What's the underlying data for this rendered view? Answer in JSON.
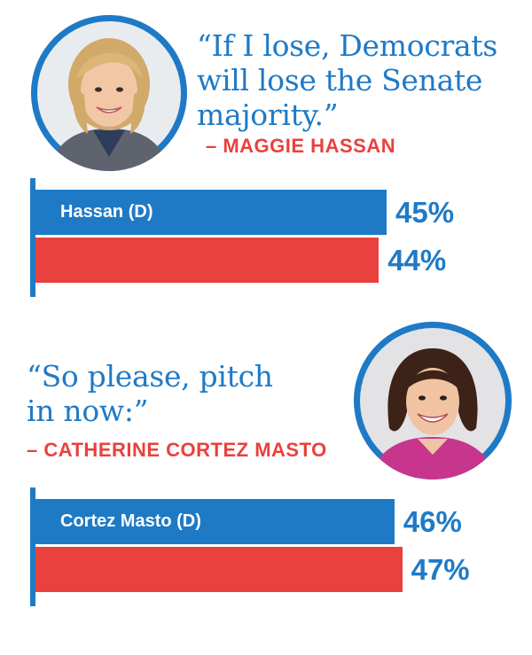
{
  "panels": [
    {
      "quote": "“If I lose, Democrats\n will lose the Senate\n majority.”",
      "attribution": "– MAGGIE HASSAN",
      "photo_icon": "portrait-photo-woman-blond",
      "chart_data": {
        "type": "bar",
        "orientation": "horizontal",
        "categories": [
          "Hassan (D)",
          ""
        ],
        "values": [
          45,
          44
        ],
        "value_labels": [
          "45%",
          "44%"
        ],
        "bar_colors": [
          "#1f7ac6",
          "#e8413e"
        ],
        "xlim": [
          0,
          100
        ],
        "grid": false,
        "legend": "none"
      }
    },
    {
      "quote": "“So please, pitch\n in now:”",
      "attribution": "– CATHERINE CORTEZ MASTO",
      "photo_icon": "portrait-photo-woman-dark-hair",
      "chart_data": {
        "type": "bar",
        "orientation": "horizontal",
        "categories": [
          "Cortez Masto (D)",
          ""
        ],
        "values": [
          46,
          47
        ],
        "value_labels": [
          "46%",
          "47%"
        ],
        "bar_colors": [
          "#1f7ac6",
          "#e8413e"
        ],
        "xlim": [
          0,
          100
        ],
        "grid": false,
        "legend": "none"
      }
    }
  ],
  "colors": {
    "blue": "#1f7ac6",
    "red": "#e8413e"
  }
}
